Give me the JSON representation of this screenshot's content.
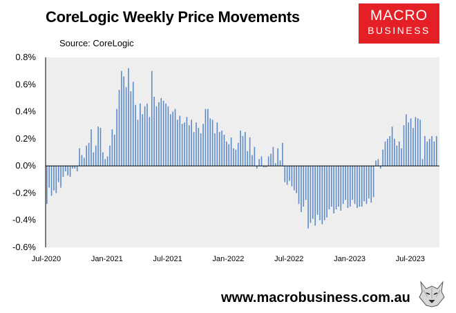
{
  "header": {
    "title": "CoreLogic Weekly Price Movements",
    "source": "Source: CoreLogic"
  },
  "logo": {
    "line1": "MACRO",
    "line2": "BUSINESS",
    "color": "#e41f26"
  },
  "footer": {
    "website": "www.macrobusiness.com.au"
  },
  "colors": {
    "bar": "#5b8ac8",
    "plot_bg": "#eeeeee",
    "axis": "#000000"
  },
  "chart_data": {
    "type": "bar",
    "title": "CoreLogic Weekly Price Movements",
    "unit": "%",
    "ylim": [
      -0.6,
      0.8
    ],
    "yticks": [
      -0.6,
      -0.4,
      -0.2,
      0.0,
      0.2,
      0.4,
      0.6,
      0.8
    ],
    "ytick_labels": [
      "-0.6%",
      "-0.4%",
      "-0.2%",
      "0.0%",
      "0.2%",
      "0.4%",
      "0.6%",
      "0.8%"
    ],
    "xtick_labels": [
      "Jul-2020",
      "Jan-2021",
      "Jul-2021",
      "Jan-2022",
      "Jul-2022",
      "Jan-2023",
      "Jul-2023"
    ],
    "xtick_indices": [
      0,
      26,
      52,
      78,
      104,
      130,
      156
    ],
    "grid": false,
    "legend": "none",
    "series": [
      {
        "values": [
          -0.28,
          -0.16,
          -0.22,
          -0.18,
          -0.2,
          -0.12,
          -0.16,
          -0.08,
          -0.04,
          -0.07,
          -0.08,
          -0.02,
          -0.02,
          -0.04,
          0.13,
          0.08,
          0.06,
          0.15,
          0.17,
          0.27,
          0.1,
          0.15,
          0.29,
          0.28,
          0.1,
          0.05,
          0.07,
          0.15,
          0.27,
          0.23,
          0.42,
          0.56,
          0.7,
          0.66,
          0.58,
          0.72,
          0.55,
          0.62,
          0.45,
          0.34,
          0.46,
          0.38,
          0.44,
          0.46,
          0.36,
          0.7,
          0.51,
          0.44,
          0.47,
          0.5,
          0.48,
          0.46,
          0.44,
          0.38,
          0.4,
          0.42,
          0.34,
          0.37,
          0.31,
          0.32,
          0.36,
          0.3,
          0.34,
          0.25,
          0.32,
          0.28,
          0.24,
          0.31,
          0.42,
          0.42,
          0.35,
          0.34,
          0.24,
          0.32,
          0.25,
          0.26,
          0.23,
          0.18,
          0.16,
          0.21,
          0.13,
          0.12,
          0.17,
          0.26,
          0.22,
          0.25,
          0.11,
          0.21,
          0.08,
          0.14,
          -0.02,
          0.05,
          0.07,
          -0.01,
          -0.01,
          0.07,
          0.09,
          0.14,
          0.02,
          0.13,
          0.04,
          0.17,
          -0.12,
          -0.14,
          -0.11,
          -0.15,
          -0.18,
          -0.2,
          -0.28,
          -0.34,
          -0.3,
          -0.25,
          -0.46,
          -0.42,
          -0.39,
          -0.44,
          -0.36,
          -0.4,
          -0.43,
          -0.4,
          -0.38,
          -0.32,
          -0.3,
          -0.35,
          -0.32,
          -0.3,
          -0.33,
          -0.28,
          -0.25,
          -0.31,
          -0.3,
          -0.25,
          -0.28,
          -0.31,
          -0.3,
          -0.3,
          -0.26,
          -0.28,
          -0.24,
          -0.27,
          -0.23,
          0.04,
          0.05,
          -0.02,
          0.12,
          0.18,
          0.2,
          0.22,
          0.29,
          0.2,
          0.15,
          0.18,
          0.13,
          0.3,
          0.38,
          0.32,
          0.35,
          0.28,
          0.36,
          0.35,
          0.34,
          0.05,
          0.22,
          0.18,
          0.2,
          0.22,
          0.18,
          0.22
        ]
      }
    ]
  }
}
